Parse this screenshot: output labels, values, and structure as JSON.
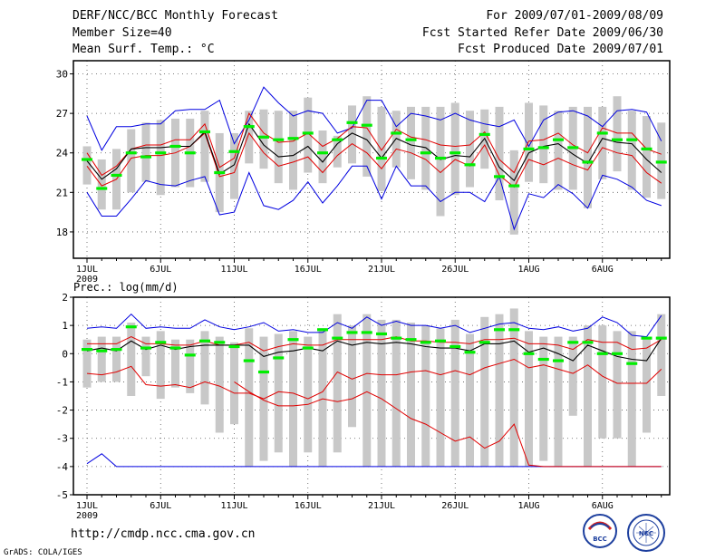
{
  "header": {
    "title": "DERF/NCC/BCC Monthly Forecast",
    "member_size": "Member Size=40",
    "variable": "Mean Surf. Temp.: °C",
    "period": "For 2009/07/01-2009/08/09",
    "started": "Fcst Started Refer Date 2009/06/30",
    "produced": "Fcst Produced Date 2009/07/01"
  },
  "footer": {
    "url": "http://cmdp.ncc.cma.gov.cn",
    "grads": "GrADS: COLA/IGES"
  },
  "logos": {
    "bcc": "BCC",
    "ncc": "NCC"
  },
  "colors": {
    "box": "#c8c8c8",
    "mean": "#000000",
    "inner": "#e00000",
    "outer": "#0000e0",
    "obs": "#00ee00"
  },
  "chart_data": [
    {
      "type": "line",
      "title": "Mean Surf. Temp.: °C",
      "ylabel": "",
      "ylim": [
        16,
        31
      ],
      "yticks": [
        18,
        21,
        24,
        27,
        30
      ],
      "x_ticks": [
        "1JUL",
        "6JUL",
        "11JUL",
        "16JUL",
        "21JUL",
        "26JUL",
        "1AUG",
        "6AUG"
      ],
      "x_year": "2009",
      "grid": true,
      "days": 40,
      "series": [
        {
          "name": "outer_upper",
          "values": [
            26.8,
            24.2,
            26.0,
            26.0,
            26.2,
            26.2,
            27.2,
            27.3,
            27.3,
            28.0,
            24.7,
            26.5,
            29.0,
            27.8,
            26.8,
            27.2,
            27.0,
            25.5,
            25.9,
            28.0,
            28.0,
            26.0,
            27.0,
            26.8,
            26.5,
            27.0,
            26.5,
            26.2,
            26.0,
            26.5,
            24.5,
            26.5,
            27.1,
            27.2,
            26.8,
            26.0,
            27.2,
            27.3,
            27.1,
            24.9
          ]
        },
        {
          "name": "inner_upper",
          "values": [
            24.0,
            22.3,
            23.0,
            24.3,
            24.6,
            24.6,
            25.0,
            25.0,
            26.2,
            22.9,
            23.6,
            27.0,
            25.5,
            24.8,
            24.9,
            25.5,
            24.5,
            25.1,
            26.0,
            25.9,
            24.2,
            25.8,
            25.2,
            25.0,
            24.6,
            24.5,
            24.6,
            25.6,
            23.5,
            22.5,
            24.9,
            25.0,
            25.5,
            24.6,
            24.0,
            25.9,
            25.5,
            25.5,
            24.3,
            23.9
          ]
        },
        {
          "name": "mean",
          "values": [
            23.4,
            22.0,
            22.8,
            24.3,
            24.4,
            24.4,
            24.5,
            24.5,
            25.6,
            22.4,
            23.1,
            26.2,
            24.6,
            23.7,
            23.8,
            24.5,
            23.3,
            24.7,
            25.5,
            25.0,
            23.6,
            25.1,
            24.6,
            24.4,
            23.5,
            23.8,
            23.7,
            25.1,
            22.9,
            21.9,
            24.0,
            24.5,
            24.7,
            23.9,
            23.2,
            25.1,
            24.8,
            24.7,
            23.5,
            22.5
          ]
        },
        {
          "name": "inner_lower",
          "values": [
            23.0,
            21.5,
            22.0,
            23.6,
            23.8,
            23.8,
            24.0,
            24.5,
            25.5,
            22.2,
            22.5,
            25.5,
            24.0,
            23.0,
            23.3,
            23.7,
            22.5,
            23.8,
            24.7,
            24.0,
            22.8,
            24.3,
            24.0,
            23.5,
            22.5,
            23.5,
            23.0,
            24.6,
            22.3,
            21.4,
            23.5,
            23.1,
            23.6,
            23.1,
            22.7,
            24.4,
            24.0,
            23.8,
            22.5,
            21.7
          ]
        },
        {
          "name": "outer_lower",
          "values": [
            21.0,
            19.2,
            19.2,
            20.5,
            21.9,
            21.6,
            21.5,
            21.9,
            22.2,
            19.3,
            19.5,
            22.5,
            20.0,
            19.7,
            20.4,
            21.8,
            20.2,
            21.5,
            23.0,
            23.0,
            20.5,
            23.0,
            21.5,
            21.5,
            20.3,
            21.0,
            21.0,
            20.3,
            22.2,
            18.2,
            20.9,
            20.6,
            21.6,
            20.9,
            19.8,
            22.3,
            22.0,
            21.4,
            20.4,
            20.0
          ]
        },
        {
          "name": "obs",
          "values": [
            23.5,
            21.3,
            22.3,
            24.0,
            23.7,
            24.0,
            24.5,
            24.0,
            25.6,
            22.5,
            24.1,
            26.0,
            25.2,
            25.0,
            25.1,
            25.5,
            24.0,
            25.0,
            26.3,
            26.1,
            23.6,
            25.5,
            25.0,
            24.0,
            23.6,
            24.0,
            23.1,
            25.4,
            22.2,
            21.5,
            24.3,
            24.4,
            25.0,
            24.4,
            23.3,
            25.5,
            25.0,
            25.0,
            24.3,
            23.3
          ]
        },
        {
          "name": "box_high",
          "values": [
            24.5,
            23.5,
            24.3,
            25.8,
            26.3,
            26.5,
            26.6,
            26.6,
            27.2,
            25.5,
            25.5,
            27.2,
            27.3,
            27.2,
            27.2,
            28.2,
            25.7,
            25.3,
            27.6,
            28.3,
            27.5,
            27.2,
            27.5,
            27.5,
            27.5,
            27.8,
            27.2,
            27.3,
            27.5,
            24.2,
            27.8,
            27.6,
            27.2,
            27.5,
            27.5,
            27.5,
            28.3,
            27.2,
            26.8,
            26.3
          ]
        },
        {
          "name": "box_low",
          "values": [
            21.6,
            19.7,
            19.7,
            21.0,
            21.8,
            20.8,
            21.4,
            21.4,
            21.8,
            19.5,
            20.5,
            23.2,
            22.8,
            21.7,
            21.2,
            22.5,
            21.7,
            22.9,
            23.2,
            22.2,
            21.1,
            22.9,
            22.0,
            21.2,
            19.2,
            20.8,
            21.4,
            22.8,
            20.4,
            17.8,
            21.8,
            21.7,
            21.2,
            21.2,
            19.8,
            22.0,
            22.6,
            21.2,
            20.6,
            20.5
          ]
        }
      ]
    },
    {
      "type": "line",
      "title": "Prec.: log(mm/d)",
      "ylabel": "",
      "ylim": [
        -5,
        2
      ],
      "yticks": [
        -5,
        -4,
        -3,
        -2,
        -1,
        0,
        1,
        2
      ],
      "x_ticks": [
        "1JUL",
        "6JUL",
        "11JUL",
        "16JUL",
        "21JUL",
        "26JUL",
        "1AUG",
        "6AUG"
      ],
      "x_year": "2009",
      "grid": true,
      "days": 40,
      "series": [
        {
          "name": "outer_upper",
          "values": [
            0.9,
            0.95,
            0.9,
            1.4,
            0.9,
            0.95,
            0.9,
            0.9,
            1.2,
            0.95,
            0.85,
            0.95,
            1.1,
            0.8,
            0.85,
            0.75,
            0.75,
            1.1,
            0.9,
            1.3,
            1.0,
            1.15,
            1.0,
            1.0,
            0.9,
            1.0,
            0.75,
            0.9,
            1.05,
            1.1,
            0.9,
            0.85,
            0.95,
            0.8,
            0.9,
            1.3,
            1.1,
            0.65,
            0.6,
            1.35
          ]
        },
        {
          "name": "inner_upper",
          "values": [
            0.35,
            0.35,
            0.35,
            0.6,
            0.35,
            0.35,
            0.3,
            0.3,
            0.45,
            0.3,
            0.3,
            0.4,
            0.1,
            0.25,
            0.35,
            0.3,
            0.3,
            0.5,
            0.5,
            0.5,
            0.5,
            0.6,
            0.45,
            0.45,
            0.4,
            0.4,
            0.35,
            0.5,
            0.5,
            0.55,
            0.35,
            0.35,
            0.3,
            0.15,
            0.5,
            0.4,
            0.4,
            0.15,
            0.2,
            0.5
          ]
        },
        {
          "name": "mean",
          "values": [
            0.1,
            0.2,
            0.1,
            0.45,
            0.15,
            0.3,
            0.15,
            0.25,
            0.3,
            0.3,
            0.3,
            0.3,
            -0.1,
            0.05,
            0.1,
            0.2,
            0.1,
            0.45,
            0.3,
            0.4,
            0.35,
            0.4,
            0.35,
            0.25,
            0.2,
            0.2,
            0.1,
            0.35,
            0.35,
            0.45,
            0.05,
            0.2,
            0.0,
            -0.25,
            0.3,
            0.1,
            -0.1,
            -0.2,
            -0.25,
            0.55
          ]
        },
        {
          "name": "inner_lower",
          "values": [
            -0.7,
            -0.75,
            -0.65,
            -0.45,
            -1.1,
            -1.15,
            -1.1,
            -1.2,
            -1.0,
            -1.15,
            -1.4,
            -1.4,
            -1.6,
            -1.35,
            -1.4,
            -1.6,
            -1.35,
            -0.65,
            -0.9,
            -0.7,
            -0.75,
            -0.75,
            -0.65,
            -0.6,
            -0.75,
            -0.6,
            -0.75,
            -0.5,
            -0.35,
            -0.2,
            -0.5,
            -0.4,
            -0.55,
            -0.7,
            -0.4,
            -0.8,
            -1.05,
            -1.05,
            -1.05,
            -0.55
          ]
        },
        {
          "name": "outer_lower",
          "values": [
            -3.9,
            -3.55,
            -4.0,
            -4.0,
            -4.0,
            -4.0,
            -4.0,
            -4.0,
            -4.0,
            -4.0,
            -4.0,
            -4.0,
            -4.0,
            -4.0,
            -4.0,
            -4.0,
            -4.0,
            -4.0,
            -4.0,
            -4.0,
            -4.0,
            -4.0,
            -4.0,
            -4.0,
            -4.0,
            -4.0,
            -4.0,
            -4.0,
            -4.0,
            -4.0,
            -4.0,
            -4.0,
            -4.0,
            -4.0,
            -4.0,
            -4.0,
            -4.0,
            -4.0,
            -4.0,
            -4.0
          ]
        },
        {
          "name": "lower_red",
          "values": [
            null,
            null,
            null,
            null,
            null,
            null,
            null,
            null,
            null,
            null,
            -1.0,
            -1.35,
            -1.65,
            -1.85,
            -1.85,
            -1.8,
            -1.6,
            -1.7,
            -1.6,
            -1.35,
            -1.6,
            -1.95,
            -2.3,
            -2.5,
            -2.8,
            -3.1,
            -2.95,
            -3.35,
            -3.1,
            -2.5,
            -3.95,
            -4.0,
            -4.0,
            -4.0,
            -4.0,
            -4.0,
            -4.0,
            -4.0,
            -4.0,
            -4.0
          ]
        },
        {
          "name": "obs",
          "values": [
            0.15,
            0.1,
            0.15,
            0.95,
            0.2,
            0.4,
            0.2,
            -0.05,
            0.45,
            0.4,
            0.25,
            -0.25,
            -0.65,
            -0.15,
            0.5,
            0.2,
            0.85,
            0.55,
            0.75,
            0.75,
            0.7,
            0.55,
            0.5,
            0.4,
            0.45,
            0.25,
            0.05,
            0.4,
            0.85,
            0.85,
            0.0,
            -0.2,
            -0.25,
            0.4,
            0.4,
            0.0,
            0.0,
            -0.35,
            0.55,
            0.55
          ]
        },
        {
          "name": "box_high",
          "values": [
            0.5,
            0.6,
            0.6,
            1.1,
            0.6,
            0.8,
            0.5,
            0.5,
            0.8,
            0.6,
            0.4,
            0.9,
            0.6,
            0.7,
            0.8,
            0.6,
            0.9,
            1.4,
            1.0,
            1.4,
            1.2,
            1.2,
            1.1,
            1.0,
            0.9,
            1.2,
            0.7,
            1.3,
            1.4,
            1.6,
            0.8,
            0.6,
            0.6,
            0.6,
            1.0,
            1.0,
            0.8,
            0.8,
            0.5,
            1.4
          ]
        },
        {
          "name": "box_low",
          "values": [
            -1.2,
            -1.0,
            -1.0,
            -1.5,
            -0.8,
            -1.6,
            -1.2,
            -1.4,
            -1.8,
            -2.8,
            -2.5,
            -4.0,
            -3.8,
            -3.5,
            -4.0,
            -3.5,
            -4.0,
            -3.5,
            -2.6,
            -4.0,
            -4.0,
            -4.0,
            -4.0,
            -4.0,
            -4.0,
            -4.0,
            -4.0,
            -4.0,
            -4.0,
            -4.0,
            -4.0,
            -3.8,
            -4.0,
            -2.2,
            -4.0,
            -3.0,
            -3.0,
            -4.0,
            -2.8,
            -1.5
          ]
        }
      ]
    }
  ]
}
